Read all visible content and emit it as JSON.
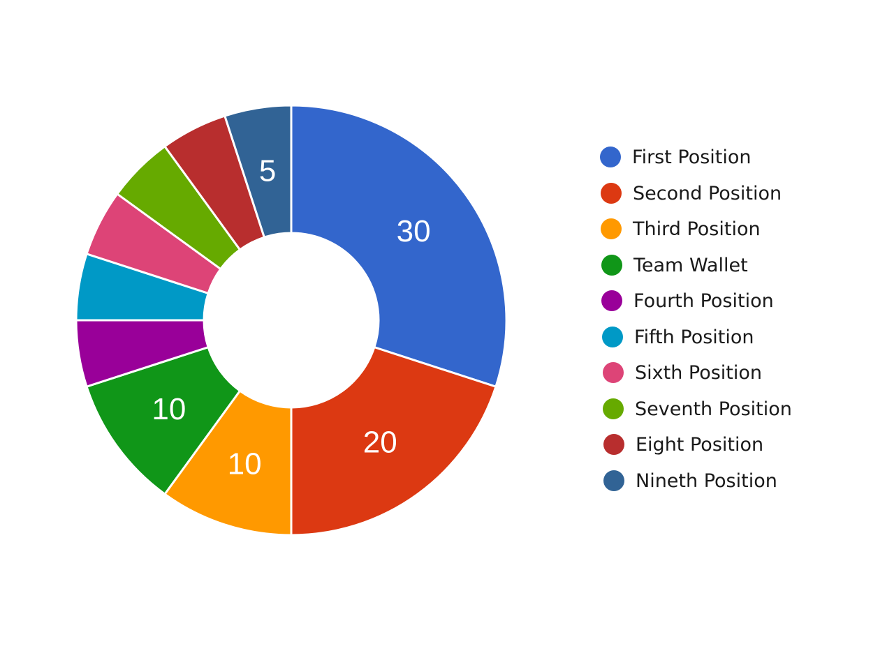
{
  "chart_data": {
    "type": "pie",
    "donut": true,
    "title": "",
    "legend_position": "right",
    "slices": [
      {
        "name": "First Position",
        "value": 30,
        "color": "#3366cc",
        "label": "30"
      },
      {
        "name": "Second Position",
        "value": 20,
        "color": "#dc3912",
        "label": "20"
      },
      {
        "name": "Third Position",
        "value": 10,
        "color": "#ff9900",
        "label": "10"
      },
      {
        "name": "Team Wallet",
        "value": 10,
        "color": "#109618",
        "label": "10"
      },
      {
        "name": "Fourth Position",
        "value": 5,
        "color": "#990099",
        "label": ""
      },
      {
        "name": "Fifth Position",
        "value": 5,
        "color": "#0099c6",
        "label": ""
      },
      {
        "name": "Sixth Position",
        "value": 5,
        "color": "#dd4477",
        "label": ""
      },
      {
        "name": "Seventh Position",
        "value": 5,
        "color": "#66aa00",
        "label": ""
      },
      {
        "name": "Eight Position",
        "value": 5,
        "color": "#b82e2e",
        "label": ""
      },
      {
        "name": "Nineth Position",
        "value": 5,
        "color": "#316395",
        "label": "5"
      }
    ]
  }
}
